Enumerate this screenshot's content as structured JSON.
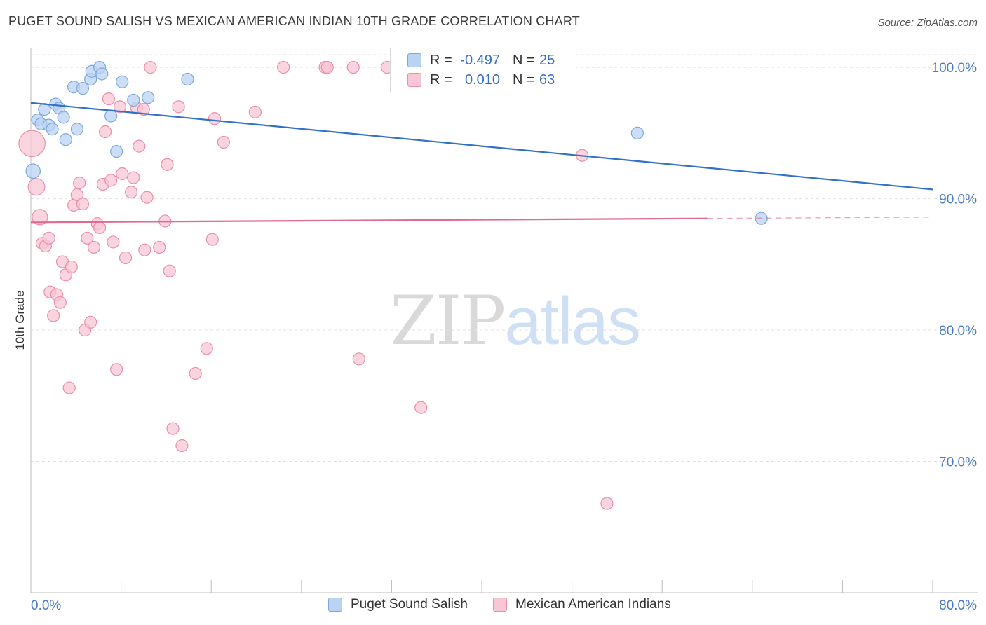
{
  "header": {
    "title": "PUGET SOUND SALISH VS MEXICAN AMERICAN INDIAN 10TH GRADE CORRELATION CHART",
    "source": "Source: ZipAtlas.com"
  },
  "watermark": {
    "zip": "ZIP",
    "atlas": "atlas"
  },
  "legend": {
    "rows": [
      {
        "r_label": "R =",
        "r_value": "-0.497",
        "n_label": "N =",
        "n_value": "25"
      },
      {
        "r_label": "R =",
        "r_value": "0.010",
        "n_label": "N =",
        "n_value": "63"
      }
    ]
  },
  "colors": {
    "blue_fill": "#b9d3f3",
    "blue_stroke": "#7ea8dc",
    "blue_line": "#3370c8",
    "pink_fill": "#f8c6d4",
    "pink_stroke": "#ea8fab",
    "pink_line": "#e06a94",
    "axis_text": "#4a7cc4",
    "grid": "#e2e2e2"
  },
  "chart_data": {
    "type": "scatter",
    "title": "PUGET SOUND SALISH VS MEXICAN AMERICAN INDIAN 10TH GRADE CORRELATION CHART",
    "xlabel": "",
    "ylabel": "10th Grade",
    "xlim": [
      0,
      80
    ],
    "ylim": [
      60,
      101.5
    ],
    "x_tick_labels": [
      "0.0%",
      "80.0%"
    ],
    "y_ticks": [
      70,
      80,
      90,
      100
    ],
    "y_tick_labels": [
      "70.0%",
      "80.0%",
      "90.0%",
      "100.0%"
    ],
    "grid": true,
    "legend_position": "bottom",
    "series": [
      {
        "name": "Puget Sound Salish",
        "r": -0.497,
        "n": 25,
        "trend": {
          "x": [
            0,
            80
          ],
          "y": [
            97.3,
            90.7
          ],
          "dashed_from": null
        },
        "points": [
          {
            "x": 0.2,
            "y": 92.1,
            "s": 1.2
          },
          {
            "x": 0.6,
            "y": 96.0,
            "s": 1.0
          },
          {
            "x": 0.9,
            "y": 95.7,
            "s": 1.0
          },
          {
            "x": 1.2,
            "y": 96.8,
            "s": 1.0
          },
          {
            "x": 1.6,
            "y": 95.6,
            "s": 1.0
          },
          {
            "x": 1.9,
            "y": 95.3,
            "s": 1.0
          },
          {
            "x": 2.2,
            "y": 97.2,
            "s": 1.0
          },
          {
            "x": 2.5,
            "y": 96.9,
            "s": 1.0
          },
          {
            "x": 2.9,
            "y": 96.2,
            "s": 1.0
          },
          {
            "x": 3.1,
            "y": 94.5,
            "s": 1.0
          },
          {
            "x": 3.8,
            "y": 98.5,
            "s": 1.0
          },
          {
            "x": 4.1,
            "y": 95.3,
            "s": 1.0
          },
          {
            "x": 4.6,
            "y": 98.4,
            "s": 1.0
          },
          {
            "x": 5.3,
            "y": 99.1,
            "s": 1.0
          },
          {
            "x": 5.4,
            "y": 99.7,
            "s": 1.0
          },
          {
            "x": 6.1,
            "y": 100.0,
            "s": 1.0
          },
          {
            "x": 6.3,
            "y": 99.5,
            "s": 1.0
          },
          {
            "x": 7.1,
            "y": 96.3,
            "s": 1.0
          },
          {
            "x": 7.6,
            "y": 93.6,
            "s": 1.0
          },
          {
            "x": 8.1,
            "y": 98.9,
            "s": 1.0
          },
          {
            "x": 9.1,
            "y": 97.5,
            "s": 1.0
          },
          {
            "x": 10.4,
            "y": 97.7,
            "s": 1.0
          },
          {
            "x": 13.9,
            "y": 99.1,
            "s": 1.0
          },
          {
            "x": 53.8,
            "y": 95.0,
            "s": 1.0
          },
          {
            "x": 64.8,
            "y": 88.5,
            "s": 1.0
          }
        ]
      },
      {
        "name": "Mexican American Indians",
        "r": 0.01,
        "n": 63,
        "trend": {
          "x": [
            0,
            80
          ],
          "y": [
            88.2,
            88.6
          ],
          "dashed_from": 60
        },
        "points": [
          {
            "x": 0.1,
            "y": 94.2,
            "s": 2.2
          },
          {
            "x": 0.5,
            "y": 90.9,
            "s": 1.4
          },
          {
            "x": 0.8,
            "y": 88.6,
            "s": 1.3
          },
          {
            "x": 1.0,
            "y": 86.6,
            "s": 1.0
          },
          {
            "x": 1.3,
            "y": 86.4,
            "s": 1.0
          },
          {
            "x": 1.6,
            "y": 87.0,
            "s": 1.0
          },
          {
            "x": 1.7,
            "y": 82.9,
            "s": 1.0
          },
          {
            "x": 2.0,
            "y": 81.1,
            "s": 1.0
          },
          {
            "x": 2.3,
            "y": 82.7,
            "s": 1.0
          },
          {
            "x": 2.6,
            "y": 82.1,
            "s": 1.0
          },
          {
            "x": 2.8,
            "y": 85.2,
            "s": 1.0
          },
          {
            "x": 3.1,
            "y": 84.2,
            "s": 1.0
          },
          {
            "x": 3.4,
            "y": 75.6,
            "s": 1.0
          },
          {
            "x": 3.6,
            "y": 84.8,
            "s": 1.0
          },
          {
            "x": 3.8,
            "y": 89.5,
            "s": 1.0
          },
          {
            "x": 4.1,
            "y": 90.3,
            "s": 1.0
          },
          {
            "x": 4.3,
            "y": 91.2,
            "s": 1.0
          },
          {
            "x": 4.6,
            "y": 89.6,
            "s": 1.0
          },
          {
            "x": 4.8,
            "y": 80.0,
            "s": 1.0
          },
          {
            "x": 5.0,
            "y": 87.0,
            "s": 1.0
          },
          {
            "x": 5.3,
            "y": 80.6,
            "s": 1.0
          },
          {
            "x": 5.6,
            "y": 86.3,
            "s": 1.0
          },
          {
            "x": 5.9,
            "y": 88.1,
            "s": 1.0
          },
          {
            "x": 6.1,
            "y": 87.8,
            "s": 1.0
          },
          {
            "x": 6.4,
            "y": 91.1,
            "s": 1.0
          },
          {
            "x": 6.6,
            "y": 95.1,
            "s": 1.0
          },
          {
            "x": 6.9,
            "y": 97.6,
            "s": 1.0
          },
          {
            "x": 7.1,
            "y": 91.4,
            "s": 1.0
          },
          {
            "x": 7.3,
            "y": 86.7,
            "s": 1.0
          },
          {
            "x": 7.6,
            "y": 77.0,
            "s": 1.0
          },
          {
            "x": 7.9,
            "y": 97.0,
            "s": 1.0
          },
          {
            "x": 8.1,
            "y": 91.9,
            "s": 1.0
          },
          {
            "x": 8.4,
            "y": 85.5,
            "s": 1.0
          },
          {
            "x": 8.9,
            "y": 90.5,
            "s": 1.0
          },
          {
            "x": 9.1,
            "y": 91.6,
            "s": 1.0
          },
          {
            "x": 9.4,
            "y": 96.9,
            "s": 1.0
          },
          {
            "x": 9.6,
            "y": 94.0,
            "s": 1.0
          },
          {
            "x": 10.0,
            "y": 96.8,
            "s": 1.0
          },
          {
            "x": 10.1,
            "y": 86.1,
            "s": 1.0
          },
          {
            "x": 10.3,
            "y": 90.1,
            "s": 1.0
          },
          {
            "x": 10.6,
            "y": 100.0,
            "s": 1.0
          },
          {
            "x": 11.4,
            "y": 86.3,
            "s": 1.0
          },
          {
            "x": 11.9,
            "y": 88.3,
            "s": 1.0
          },
          {
            "x": 12.1,
            "y": 92.6,
            "s": 1.0
          },
          {
            "x": 12.3,
            "y": 84.5,
            "s": 1.0
          },
          {
            "x": 12.6,
            "y": 72.5,
            "s": 1.0
          },
          {
            "x": 13.1,
            "y": 97.0,
            "s": 1.0
          },
          {
            "x": 13.4,
            "y": 71.2,
            "s": 1.0
          },
          {
            "x": 14.6,
            "y": 76.7,
            "s": 1.0
          },
          {
            "x": 15.6,
            "y": 78.6,
            "s": 1.0
          },
          {
            "x": 16.1,
            "y": 86.9,
            "s": 1.0
          },
          {
            "x": 16.3,
            "y": 96.1,
            "s": 1.0
          },
          {
            "x": 17.1,
            "y": 94.3,
            "s": 1.0
          },
          {
            "x": 19.9,
            "y": 96.6,
            "s": 1.0
          },
          {
            "x": 22.4,
            "y": 100.0,
            "s": 1.0
          },
          {
            "x": 26.1,
            "y": 100.0,
            "s": 1.0
          },
          {
            "x": 26.3,
            "y": 100.0,
            "s": 1.0
          },
          {
            "x": 28.6,
            "y": 100.0,
            "s": 1.0
          },
          {
            "x": 29.1,
            "y": 77.8,
            "s": 1.0
          },
          {
            "x": 31.6,
            "y": 100.0,
            "s": 1.0
          },
          {
            "x": 34.6,
            "y": 74.1,
            "s": 1.0
          },
          {
            "x": 48.9,
            "y": 93.3,
            "s": 1.0
          },
          {
            "x": 51.1,
            "y": 66.8,
            "s": 1.0
          }
        ]
      }
    ]
  }
}
